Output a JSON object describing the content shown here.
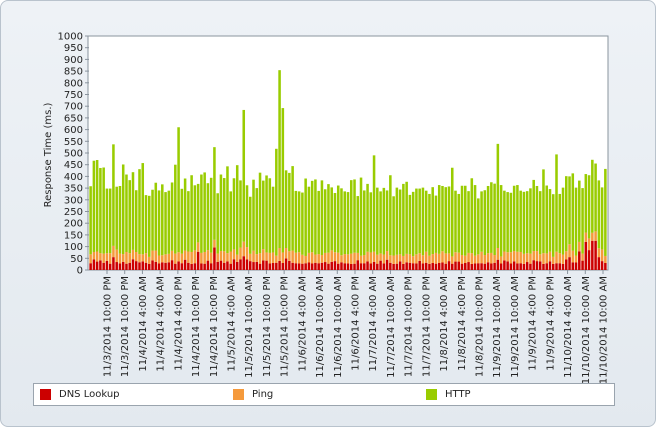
{
  "chart_data": {
    "type": "bar",
    "stacked": true,
    "ylabel": "Response Time (ms.)",
    "ylim": [
      0,
      1000
    ],
    "yticks": [
      0,
      50,
      100,
      150,
      200,
      250,
      300,
      350,
      400,
      450,
      500,
      550,
      600,
      650,
      700,
      750,
      800,
      850,
      900,
      950,
      1000
    ],
    "xtick_labels": [
      "11/3/2014 10:00 PM",
      "11/3/2014 10:00 PM",
      "11/4/2014 4:00 AM",
      "11/4/2014 4:00 AM",
      "11/4/2014 4:00 PM",
      "11/4/2014 10:00 PM",
      "11/4/2014 10:00 PM",
      "11/5/2014 4:00 AM",
      "11/5/2014 10:00 AM",
      "11/5/2014 10:00 PM",
      "11/5/2014 10:00 PM",
      "11/6/2014 4:00 AM",
      "11/6/2014 10:00 AM",
      "11/6/2014 10:00 AM",
      "11/6/2014 4:00 PM",
      "11/7/2014 4:00 AM",
      "11/7/2014 10:00 AM",
      "11/7/2014 10:00 PM",
      "11/7/2014 10:00 PM",
      "11/8/2014 4:00 AM",
      "11/8/2014 4:00 PM",
      "11/8/2014 10:00 PM",
      "11/9/2014 10:00 AM",
      "11/9/2014 10:00 AM",
      "11/9/2014 4:00 PM",
      "11/9/2014 4:00 PM",
      "11/10/2014 4:00 AM",
      "11/10/2014 10:00 AM",
      "11/10/2014 10:00 AM"
    ],
    "series": [
      {
        "name": "DNS Lookup",
        "color": "#cc0000",
        "values": [
          29,
          45,
          36,
          41,
          31,
          39,
          27,
          55,
          34,
          28,
          35,
          27,
          31,
          46,
          38,
          33,
          37,
          31,
          26,
          41,
          35,
          28,
          33,
          31,
          33,
          42,
          27,
          37,
          29,
          44,
          31,
          26,
          29,
          78,
          28,
          27,
          40,
          29,
          96,
          35,
          40,
          31,
          37,
          27,
          46,
          35,
          46,
          59,
          45,
          38,
          34,
          35,
          27,
          41,
          40,
          28,
          30,
          31,
          39,
          30,
          49,
          39,
          31,
          29,
          28,
          27,
          29,
          32,
          28,
          31,
          29,
          31,
          34,
          27,
          35,
          38,
          27,
          33,
          29,
          28,
          26,
          27,
          42,
          29,
          29,
          37,
          28,
          35,
          27,
          40,
          28,
          44,
          31,
          26,
          27,
          37,
          26,
          33,
          31,
          29,
          28,
          39,
          28,
          31,
          26,
          30,
          27,
          30,
          32,
          27,
          38,
          27,
          36,
          36,
          27,
          30,
          34,
          26,
          28,
          29,
          29,
          27,
          33,
          28,
          31,
          44,
          28,
          41,
          37,
          28,
          37,
          28,
          29,
          26,
          34,
          27,
          42,
          38,
          37,
          26,
          29,
          37,
          26,
          29,
          29,
          26,
          45,
          55,
          33,
          32,
          80,
          40,
          120,
          85,
          125,
          125,
          55,
          38,
          30
        ]
      },
      {
        "name": "Ping",
        "color": "#f59a3c",
        "values": [
          38,
          32,
          43,
          31,
          39,
          33,
          45,
          48,
          53,
          42,
          33,
          50,
          41,
          40,
          39,
          35,
          30,
          41,
          30,
          42,
          48,
          34,
          30,
          36,
          36,
          40,
          43,
          39,
          41,
          39,
          48,
          51,
          55,
          40,
          45,
          50,
          45,
          45,
          33,
          35,
          41,
          49,
          35,
          52,
          42,
          31,
          50,
          62,
          53,
          31,
          49,
          33,
          45,
          48,
          35,
          45,
          45,
          30,
          55,
          45,
          45,
          41,
          52,
          45,
          48,
          38,
          31,
          41,
          48,
          35,
          39,
          33,
          39,
          47,
          49,
          38,
          47,
          30,
          39,
          39,
          44,
          47,
          31,
          32,
          35,
          41,
          47,
          43,
          38,
          31,
          38,
          37,
          32,
          36,
          38,
          30,
          34,
          36,
          36,
          30,
          39,
          33,
          35,
          47,
          35,
          38,
          46,
          39,
          48,
          44,
          33,
          31,
          40,
          38,
          37,
          31,
          39,
          46,
          33,
          38,
          49,
          37,
          39,
          45,
          33,
          50,
          30,
          38,
          39,
          48,
          44,
          50,
          48,
          43,
          38,
          43,
          39,
          43,
          30,
          46,
          42,
          41,
          30,
          49,
          43,
          40,
          35,
          55,
          50,
          30,
          40,
          30,
          40,
          50,
          34,
          40,
          38,
          50,
          30
        ]
      },
      {
        "name": "HTTP",
        "color": "#99cc00",
        "values": [
          291,
          390,
          391,
          364,
          368,
          276,
          276,
          434,
          269,
          289,
          383,
          331,
          312,
          332,
          264,
          363,
          390,
          248,
          261,
          260,
          290,
          278,
          303,
          266,
          270,
          292,
          380,
          534,
          277,
          308,
          258,
          328,
          278,
          250,
          335,
          340,
          286,
          320,
          396,
          258,
          327,
          313,
          371,
          257,
          304,
          382,
          287,
          563,
          264,
          244,
          303,
          282,
          344,
          293,
          329,
          319,
          281,
          457,
          760,
          617,
          332,
          335,
          361,
          264,
          260,
          266,
          331,
          283,
          305,
          321,
          270,
          319,
          272,
          293,
          269,
          253,
          287,
          286,
          268,
          266,
          314,
          313,
          243,
          334,
          276,
          290,
          257,
          412,
          287,
          265,
          285,
          259,
          342,
          253,
          287,
          277,
          308,
          308,
          254,
          275,
          281,
          276,
          289,
          261,
          264,
          286,
          245,
          294,
          279,
          283,
          286,
          379,
          263,
          251,
          296,
          299,
          264,
          320,
          302,
          239,
          258,
          277,
          287,
          302,
          305,
          445,
          305,
          260,
          257,
          254,
          279,
          285,
          262,
          265,
          265,
          279,
          304,
          278,
          270,
          358,
          290,
          268,
          268,
          416,
          253,
          286,
          321,
          290,
          330,
          290,
          262,
          280,
          250,
          270,
          312,
          290,
          290,
          265,
          372
        ]
      },
      {
        "name": "_ticks_hidden",
        "color": "#000000",
        "values": []
      }
    ],
    "legend_placement": "bottom",
    "grid": false
  },
  "legend": {
    "items": [
      {
        "label": "DNS Lookup",
        "color": "#cc0000"
      },
      {
        "label": "Ping",
        "color": "#f59a3c"
      },
      {
        "label": "HTTP",
        "color": "#99cc00"
      }
    ]
  }
}
